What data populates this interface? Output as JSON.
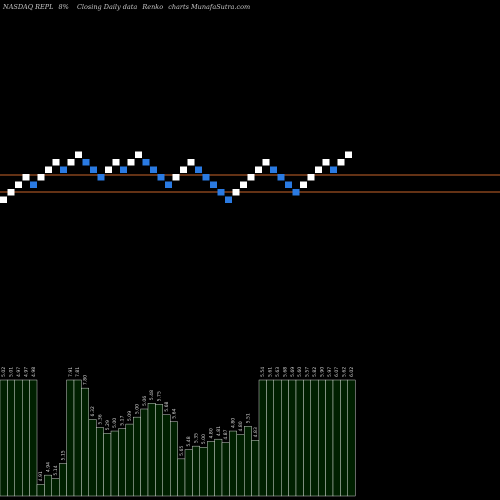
{
  "header": {
    "ticker": "NASDAQ REPL",
    "change": "8%",
    "caption": "Closing Daily data",
    "chart_kind": "Renko",
    "brand": "charts MunafaSutra.com"
  },
  "colors": {
    "background": "#000000",
    "up_brick": "#ffffff",
    "down_brick": "#2a7ae2",
    "ref_line": "#c8642a",
    "volume_fill": "#002000",
    "volume_stroke": "#ffffff"
  },
  "chart_data": {
    "type": "bar",
    "renko": {
      "bricks": [
        "up",
        "up",
        "up",
        "up",
        "down",
        "up",
        "up",
        "up",
        "down",
        "up",
        "up",
        "down",
        "down",
        "down",
        "up",
        "up",
        "down",
        "up",
        "up",
        "down",
        "down",
        "down",
        "down",
        "up",
        "up",
        "up",
        "down",
        "down",
        "down",
        "down",
        "down",
        "up",
        "up",
        "up",
        "up",
        "up",
        "down",
        "down",
        "down",
        "down",
        "up",
        "up",
        "up",
        "up",
        "down",
        "up",
        "up"
      ],
      "brick_size": 0.1
    },
    "ref_lines": 2,
    "volume": {
      "values": [
        100,
        100,
        100,
        100,
        100,
        10,
        18,
        15,
        28,
        100,
        100,
        93,
        66,
        59,
        54,
        56,
        58,
        62,
        68,
        75,
        80,
        79,
        70,
        64,
        32,
        40,
        43,
        42,
        47,
        49,
        46,
        56,
        53,
        60,
        48,
        100,
        100,
        100,
        100,
        100,
        100,
        100,
        100,
        100,
        100,
        100,
        100,
        100
      ],
      "labels": [
        "5.02",
        "5.01",
        "4.97",
        "4.97",
        "4.98",
        "4.91",
        "4.94",
        "5.14",
        "5.15",
        "7.91",
        "7.81",
        "7.80",
        "6.32",
        "5.36",
        "5.29",
        "5.00",
        "5.17",
        "5.09",
        "5.00",
        "5.06",
        "5.48",
        "5.75",
        "5.68",
        "5.64",
        "5.65",
        "5.48",
        "5.35",
        "5.00",
        "4.80",
        "4.81",
        "4.87",
        "4.80",
        "4.80",
        "5.51",
        "4.83",
        "5.54",
        "5.61",
        "5.63",
        "5.68",
        "5.69",
        "5.60",
        "5.57",
        "5.82",
        "5.90",
        "5.97",
        "6.07",
        "5.62",
        "6.02"
      ]
    }
  }
}
